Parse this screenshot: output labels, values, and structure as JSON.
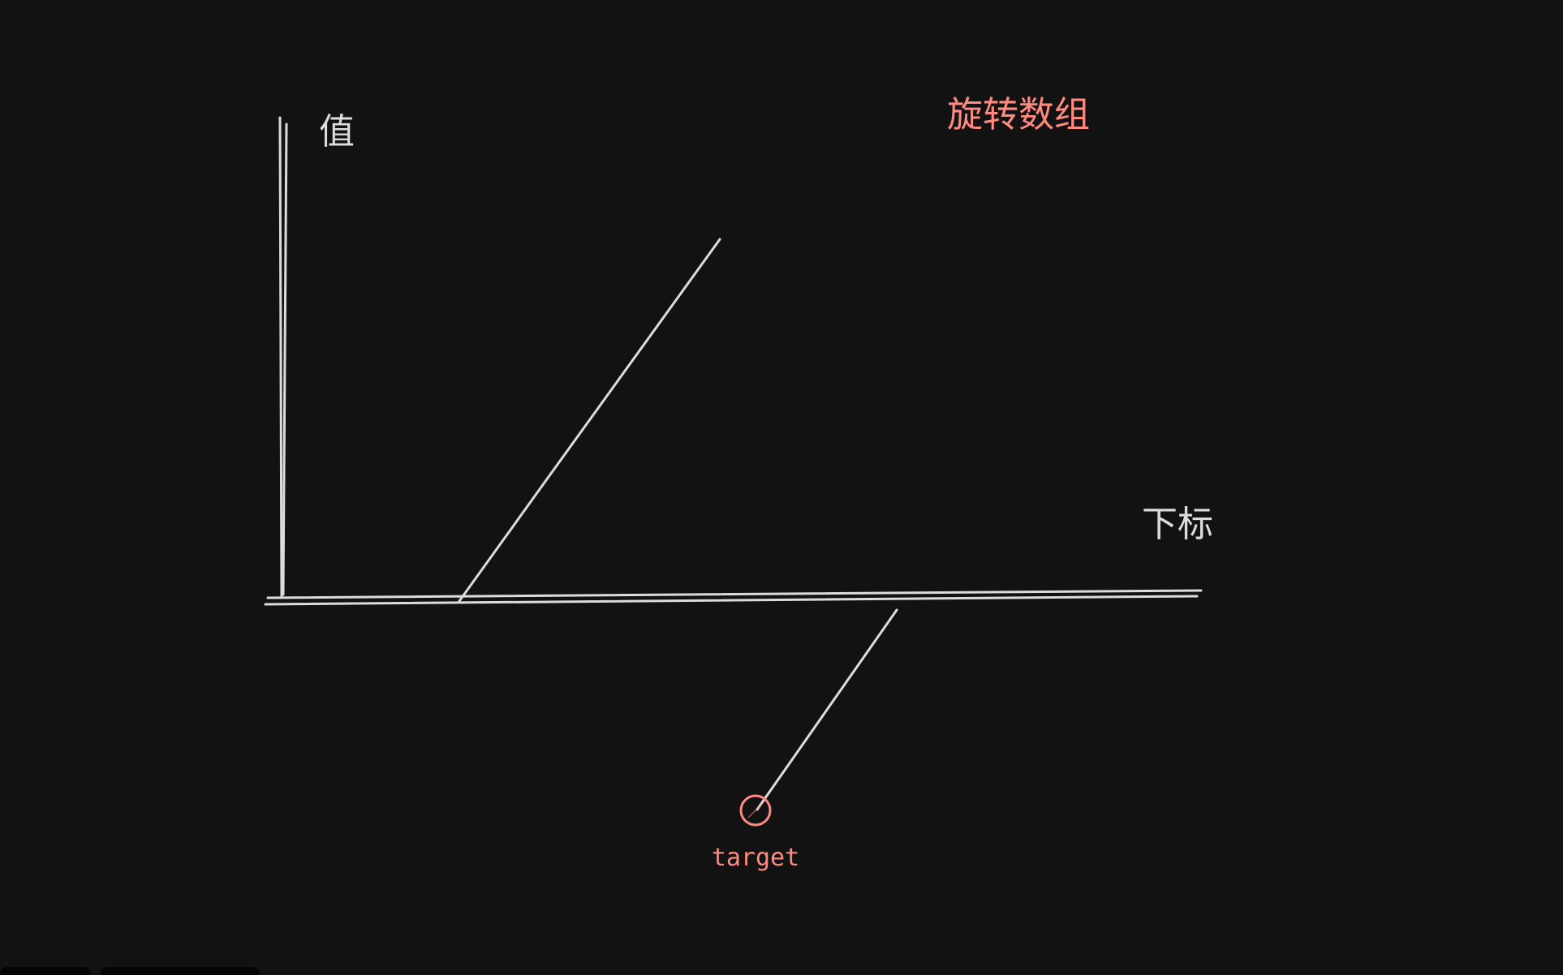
{
  "diagram": {
    "title": "旋转数组",
    "y_axis_label": "值",
    "x_axis_label": "下标",
    "target_label": "target"
  },
  "colors": {
    "background": "#121212",
    "stroke": "#dcdcdc",
    "accent": "#ff8a80"
  }
}
